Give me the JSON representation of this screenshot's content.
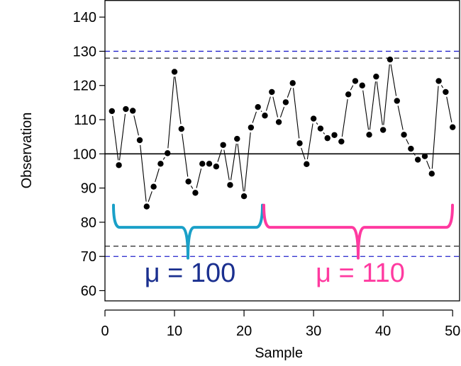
{
  "chart_data": {
    "type": "line",
    "xlabel": "Sample",
    "ylabel": "Observation",
    "xlim": [
      0,
      51
    ],
    "ylim": [
      57,
      145
    ],
    "x_ticks": [
      0,
      10,
      20,
      30,
      40,
      50
    ],
    "y_ticks": [
      60,
      70,
      80,
      90,
      100,
      110,
      120,
      130,
      140
    ],
    "series": [
      {
        "x": [
          1,
          2,
          3,
          4,
          5,
          6,
          7,
          8,
          9,
          10,
          11,
          12,
          13,
          14,
          15,
          16,
          17,
          18,
          19,
          20,
          21,
          22,
          23,
          24,
          25,
          26,
          27,
          28,
          29,
          30,
          31,
          32,
          33,
          34,
          35,
          36,
          37,
          38,
          39,
          40,
          41,
          42,
          43,
          44,
          45,
          46,
          47,
          48,
          49,
          50
        ],
        "values": [
          112.5,
          96.7,
          113.1,
          112.6,
          104.0,
          84.6,
          90.4,
          97.1,
          100.2,
          124.0,
          107.3,
          91.9,
          88.6,
          97.1,
          97.1,
          96.3,
          102.6,
          90.9,
          104.4,
          87.6,
          107.7,
          113.7,
          111.2,
          118.1,
          109.3,
          115.1,
          120.7,
          103.1,
          97.0,
          110.3,
          107.4,
          104.6,
          105.5,
          103.6,
          117.4,
          121.3,
          120.0,
          105.6,
          122.6,
          107.0,
          127.6,
          115.5,
          105.6,
          101.5,
          98.3,
          99.3,
          94.2,
          121.3,
          118.1,
          107.8
        ]
      }
    ],
    "reference_lines": [
      {
        "y": 130,
        "style": "dashed",
        "color": "#2222cc"
      },
      {
        "y": 128,
        "style": "dashed",
        "color": "#222222"
      },
      {
        "y": 100,
        "style": "solid",
        "color": "#000000"
      },
      {
        "y": 73,
        "style": "dashed",
        "color": "#222222"
      },
      {
        "y": 70,
        "style": "dashed",
        "color": "#2222cc"
      }
    ],
    "annotations": [
      {
        "text": "μ = 100",
        "x_from": 0,
        "x_to": 22.5,
        "color": "#1a2f8f",
        "brace_color": "#1aa0c8"
      },
      {
        "text": "μ = 110",
        "x_from": 22.5,
        "x_to": 51,
        "color": "#ff3aa0",
        "brace_color": "#ff3aa0"
      }
    ]
  }
}
